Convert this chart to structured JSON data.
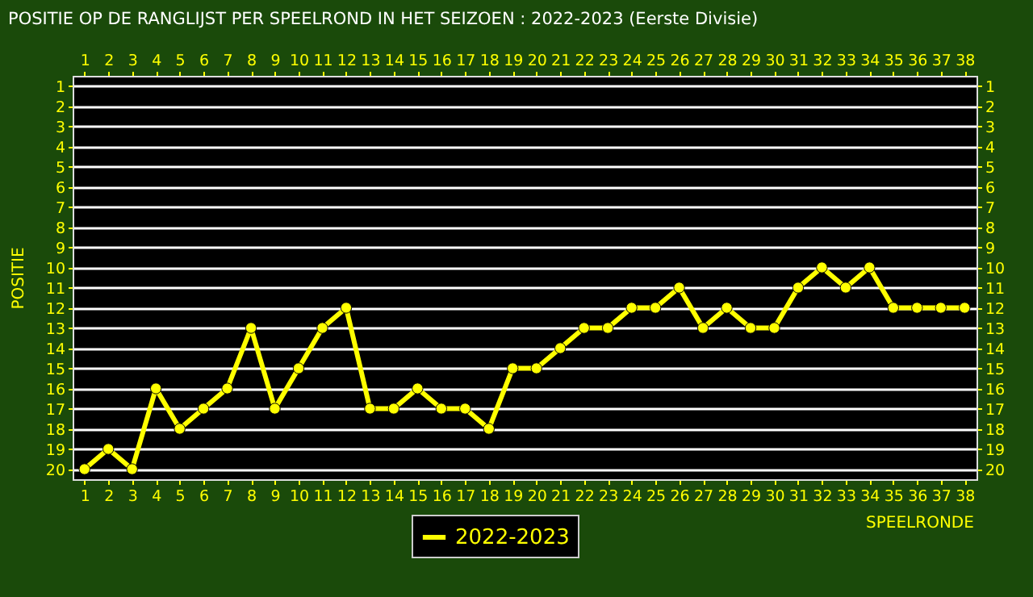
{
  "chart_data": {
    "type": "line",
    "title": "POSITIE OP DE RANGLIJST PER  SPEELROND IN HET SEIZOEN : 2022-2023 (Eerste Divisie)",
    "xlabel": "SPEELRONDE",
    "ylabel": "POSITIE",
    "x": [
      1,
      2,
      3,
      4,
      5,
      6,
      7,
      8,
      9,
      10,
      11,
      12,
      13,
      14,
      15,
      16,
      17,
      18,
      19,
      20,
      21,
      22,
      23,
      24,
      25,
      26,
      27,
      28,
      29,
      30,
      31,
      32,
      33,
      34,
      35,
      36,
      37,
      38
    ],
    "series": [
      {
        "name": "2022-2023",
        "color": "#ffff00",
        "values": [
          20,
          19,
          20,
          16,
          18,
          17,
          16,
          13,
          17,
          15,
          13,
          12,
          17,
          17,
          16,
          17,
          17,
          18,
          15,
          15,
          14,
          13,
          13,
          12,
          12,
          11,
          13,
          12,
          13,
          13,
          11,
          10,
          11,
          10,
          12,
          12,
          12,
          12
        ]
      }
    ],
    "xlim": [
      0.5,
      38.5
    ],
    "xticks": [
      1,
      2,
      3,
      4,
      5,
      6,
      7,
      8,
      9,
      10,
      11,
      12,
      13,
      14,
      15,
      16,
      17,
      18,
      19,
      20,
      21,
      22,
      23,
      24,
      25,
      26,
      27,
      28,
      29,
      30,
      31,
      32,
      33,
      34,
      35,
      36,
      37,
      38
    ],
    "x2lim": [
      0.5,
      38.5
    ],
    "x2ticks": [
      1,
      2,
      3,
      4,
      5,
      6,
      7,
      8,
      9,
      10,
      11,
      12,
      13,
      14,
      15,
      16,
      17,
      18,
      19,
      20,
      21,
      22,
      23,
      24,
      25,
      26,
      27,
      28,
      29,
      30,
      31,
      32,
      33,
      34,
      35,
      36,
      37,
      38
    ],
    "ylim": [
      20.5,
      0.5
    ],
    "yticks": [
      1,
      2,
      3,
      4,
      5,
      6,
      7,
      8,
      9,
      10,
      11,
      12,
      13,
      14,
      15,
      16,
      17,
      18,
      19,
      20
    ],
    "y2lim": [
      20.5,
      0.5
    ],
    "y2ticks": [
      1,
      2,
      3,
      4,
      5,
      6,
      7,
      8,
      9,
      10,
      11,
      12,
      13,
      14,
      15,
      16,
      17,
      18,
      19,
      20
    ],
    "grid": "y",
    "legend": "bottom",
    "marker": "circle",
    "line_style": "solid"
  }
}
